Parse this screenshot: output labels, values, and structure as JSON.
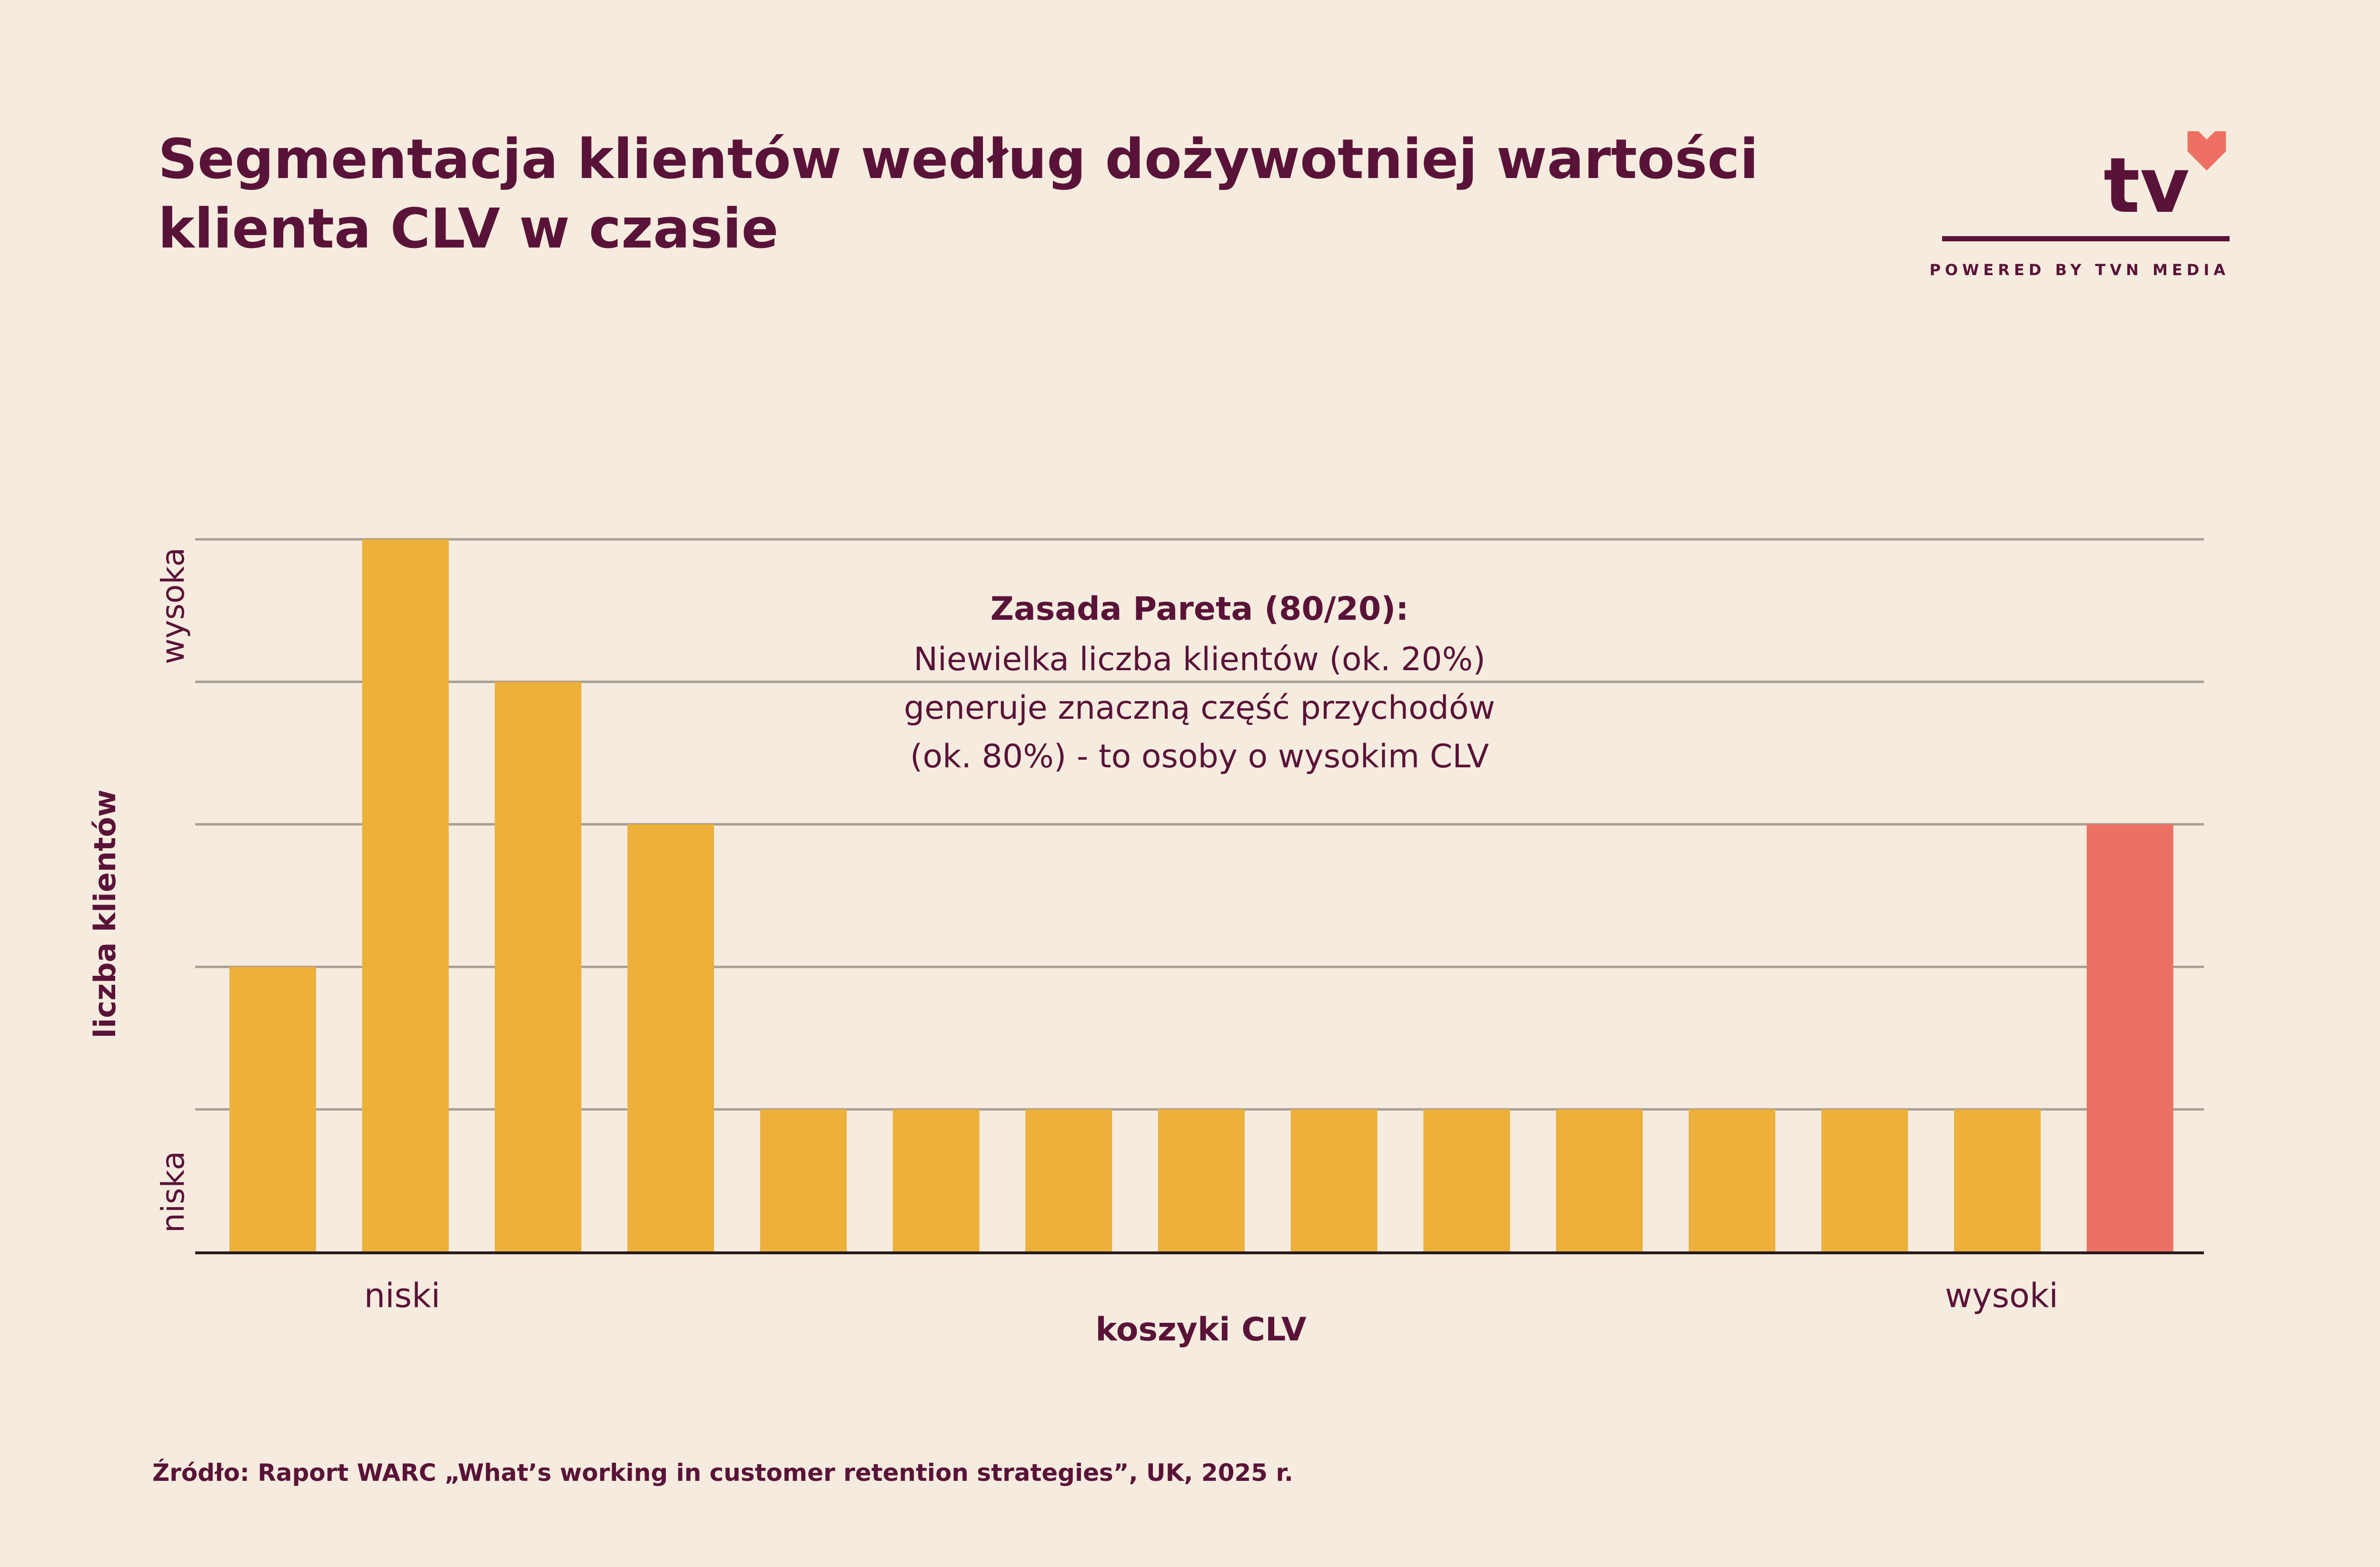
{
  "header": {
    "title_line1": "Segmentacja klientów według dożywotniej wartości",
    "title_line2": "klienta CLV w czasie"
  },
  "brand": {
    "logo_text": "tv",
    "tagline": "POWERED BY TVN MEDIA",
    "heart_color": "#ee7062"
  },
  "chart_data": {
    "type": "bar",
    "ylabel": "liczba klientów",
    "xlabel": "koszyki CLV",
    "y_range_labels": {
      "low": "niska",
      "high": "wysoka"
    },
    "x_range_labels": {
      "low": "niski",
      "high": "wysoki"
    },
    "ylim": [
      0,
      5
    ],
    "grid": true,
    "gridlines": [
      1,
      2,
      3,
      4,
      5
    ],
    "values": [
      2,
      5,
      4,
      3,
      1,
      1,
      1,
      1,
      1,
      1,
      1,
      1,
      1,
      1,
      3
    ],
    "colors": {
      "default": "#ecb03b",
      "highlight": "#ec7163",
      "grid": "#a89f94",
      "axis": "#2a1a1a"
    },
    "highlight_index": 14,
    "annotation": {
      "title": "Zasada Pareta (80/20):",
      "lines": [
        "Niewielka liczba klientów (ok. 20%)",
        "generuje znaczną część przychodów",
        "(ok. 80%) - to osoby o wysokim CLV"
      ]
    }
  },
  "footer": {
    "source": "Źródło: Raport WARC „What’s working in customer retention strategies”, UK, 2025 r."
  }
}
